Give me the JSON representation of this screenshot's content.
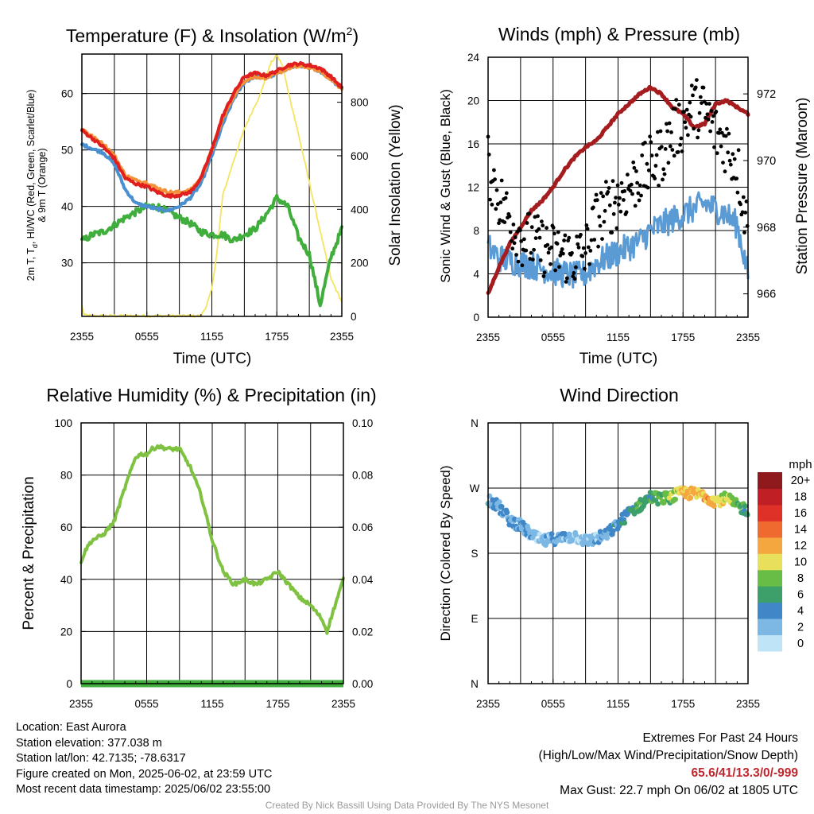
{
  "charts": {
    "temp": {
      "title": "Temperature (F) & Insolation (W/m",
      "title_sup": "2",
      "title_end": ")",
      "xlabel": "Time (UTC)",
      "ylabel_left_line1": "2m T, T",
      "ylabel_left_sub": "d",
      "ylabel_left_line1_end": ", HI/WC (Red, Green, Scarlet/Blue)",
      "ylabel_left_line2": "& 9m T (Orange)",
      "ylabel_right": "Solar Insolation (Yellow)"
    },
    "wind": {
      "title": "Winds (mph) & Pressure (mb)",
      "xlabel": "Time (UTC)",
      "ylabel_left": "Sonic Wind & Gust (Blue, Black)",
      "ylabel_right": "Station Pressure (Maroon)"
    },
    "rh": {
      "title": "Relative Humidity (%) & Precipitation (in)",
      "ylabel_left": "Percent & Precipitation"
    },
    "dir": {
      "title": "Wind Direction",
      "ylabel_left": "Direction (Colored By Speed)",
      "colorbar_title": "mph"
    }
  },
  "chart_data": [
    {
      "id": "temperature",
      "type": "line",
      "x_ticks": [
        "2355",
        "0555",
        "1155",
        "1755",
        "2355"
      ],
      "y_left_ticks": [
        "30",
        "40",
        "50",
        "60"
      ],
      "y_left_lim": [
        20.5,
        67
      ],
      "y_right_ticks": [
        "0",
        "200",
        "400",
        "600",
        "800"
      ],
      "y_right_lim": [
        0,
        980
      ],
      "series": [
        {
          "name": "Scarlet",
          "color": "#e0201f",
          "axis": "left",
          "t": [
            0,
            1,
            2,
            3,
            4,
            5,
            6,
            7,
            8,
            9,
            10,
            11,
            12,
            13,
            14,
            15,
            16,
            17,
            18,
            19,
            20,
            21,
            22,
            23,
            24
          ],
          "v": [
            53.5,
            52,
            50.5,
            48.5,
            45,
            44,
            43.5,
            42.5,
            41.8,
            42,
            42.5,
            45,
            50,
            56,
            60,
            63,
            63.6,
            63.2,
            64,
            65,
            65.3,
            65,
            64.5,
            63,
            61
          ]
        },
        {
          "name": "Orange",
          "color": "#f4923a",
          "axis": "left",
          "t": [
            0,
            1,
            2,
            3,
            4,
            5,
            6,
            7,
            8,
            9,
            10,
            11,
            12,
            13,
            14,
            15,
            16,
            17,
            18,
            19,
            20,
            21,
            22,
            23,
            24
          ],
          "v": [
            53.8,
            52.3,
            51,
            49,
            45.5,
            44.6,
            44.2,
            43.2,
            42.5,
            42.5,
            42.8,
            45,
            50,
            55.5,
            59.5,
            62.3,
            63,
            62.8,
            63.5,
            64.5,
            64.8,
            64.7,
            64,
            62.5,
            60.8
          ]
        },
        {
          "name": "Blue",
          "color": "#4a8fd0",
          "axis": "left",
          "t": [
            0,
            1,
            2,
            3,
            4,
            5,
            6,
            7,
            8,
            9,
            10,
            11,
            12,
            13,
            14,
            15,
            16,
            17,
            18,
            19,
            20,
            21,
            22,
            23,
            24
          ],
          "v": [
            51,
            50.2,
            49.5,
            47.5,
            43,
            40.5,
            40,
            39.5,
            39.3,
            40,
            41.5,
            44,
            49,
            54.5,
            59,
            62,
            63,
            62.8,
            63.5,
            64.5,
            65,
            64.8,
            64,
            62.6,
            60.8
          ]
        },
        {
          "name": "Green",
          "color": "#3fae3c",
          "axis": "left",
          "t": [
            0,
            1,
            2,
            3,
            4,
            5,
            6,
            7,
            8,
            9,
            10,
            11,
            12,
            13,
            14,
            15,
            16,
            17,
            18,
            19,
            20,
            21,
            22,
            23,
            24
          ],
          "v": [
            33.8,
            35,
            35.5,
            36.7,
            38,
            39,
            40,
            40,
            39,
            38,
            37,
            35.5,
            35,
            35,
            34,
            35,
            36,
            38.5,
            41.5,
            40,
            34.5,
            31.5,
            22.5,
            31,
            36
          ]
        },
        {
          "name": "Yellow",
          "color": "#f5e45d",
          "axis": "right",
          "t": [
            0,
            0.2,
            1,
            4,
            8,
            11,
            11.5,
            12,
            12.5,
            13,
            14,
            15,
            16,
            16.5,
            17,
            17.5,
            18,
            18.5,
            19,
            20,
            21,
            22,
            23,
            24
          ],
          "v": [
            40,
            5,
            2,
            2,
            2,
            2,
            40,
            100,
            250,
            450,
            580,
            700,
            790,
            830,
            900,
            950,
            975,
            940,
            850,
            680,
            500,
            320,
            140,
            55
          ]
        }
      ]
    },
    {
      "id": "winds",
      "type": "line",
      "x_ticks": [
        "2355",
        "0555",
        "1155",
        "1755",
        "2355"
      ],
      "y_left_ticks": [
        "0",
        "4",
        "8",
        "12",
        "16",
        "20",
        "24"
      ],
      "y_left_lim": [
        0,
        24
      ],
      "y_right_ticks": [
        "966",
        "968",
        "970",
        "972"
      ],
      "y_right_lim": [
        965.3,
        973.1
      ],
      "series": [
        {
          "name": "Maroon",
          "color": "#a51c1f",
          "axis": "right",
          "kind": "line",
          "t": [
            0,
            1,
            2,
            3,
            4,
            5,
            6,
            7,
            8,
            9,
            10,
            11,
            12,
            13,
            14,
            15,
            16,
            17,
            18,
            19,
            20,
            21,
            22,
            23,
            24
          ],
          "v": [
            966.0,
            966.8,
            967.5,
            968.0,
            968.5,
            968.8,
            969.2,
            969.7,
            970.1,
            970.4,
            970.6,
            971.0,
            971.4,
            971.7,
            972.0,
            972.2,
            972.0,
            971.6,
            971.4,
            971.0,
            971.1,
            971.7,
            971.8,
            971.6,
            971.4
          ]
        },
        {
          "name": "Blue",
          "color": "#5b9bd5",
          "axis": "left",
          "kind": "line",
          "t": [
            0,
            1,
            2,
            3,
            4,
            5,
            6,
            7,
            8,
            9,
            10,
            11,
            12,
            13,
            14,
            15,
            16,
            17,
            18,
            19,
            20,
            21,
            22,
            23,
            24
          ],
          "v": [
            6.5,
            5.5,
            5.2,
            5.0,
            4.8,
            4.5,
            4.2,
            4.0,
            3.8,
            4.0,
            5.0,
            5.5,
            6.0,
            6.5,
            7.0,
            8.0,
            8.5,
            9.0,
            9.5,
            10.0,
            10.5,
            10.0,
            9.5,
            8.5,
            4.0
          ]
        },
        {
          "name": "Black",
          "color": "#000000",
          "axis": "left",
          "kind": "scatter",
          "t": [
            0,
            1,
            2,
            3,
            4,
            5,
            6,
            7,
            8,
            9,
            10,
            11,
            12,
            13,
            14,
            15,
            16,
            17,
            18,
            19,
            20,
            21,
            22,
            23,
            24
          ],
          "v": [
            14,
            11,
            9,
            7.5,
            7,
            6.5,
            6,
            5.8,
            5.5,
            6,
            9,
            10,
            11,
            12,
            13,
            14,
            15,
            17,
            18,
            19.5,
            19,
            17,
            16,
            14,
            8
          ]
        }
      ]
    },
    {
      "id": "humidity",
      "type": "line",
      "x_ticks": [
        "2355",
        "0555",
        "1155",
        "1755",
        "2355"
      ],
      "y_left_ticks": [
        "0",
        "20",
        "40",
        "60",
        "80",
        "100"
      ],
      "y_left_lim": [
        0,
        100
      ],
      "y_right_ticks": [
        "0.00",
        "0.02",
        "0.04",
        "0.06",
        "0.08",
        "0.10"
      ],
      "y_right_lim": [
        0,
        0.1
      ],
      "series": [
        {
          "name": "RH",
          "color": "#7fc241",
          "axis": "left",
          "t": [
            0,
            0.5,
            1,
            2,
            3,
            4,
            5,
            5.5,
            6,
            6.5,
            7,
            8,
            9,
            10,
            11,
            12,
            13,
            14,
            15,
            16,
            17,
            18,
            19,
            20,
            21,
            22,
            22.5,
            23,
            24
          ],
          "v": [
            47,
            52,
            55,
            57,
            62,
            75,
            87,
            88,
            88,
            90,
            91,
            90,
            90,
            83,
            72,
            55,
            43,
            38,
            40,
            38,
            40,
            43,
            38,
            33,
            30,
            25,
            20,
            27,
            40
          ]
        },
        {
          "name": "Precipitation",
          "color": "#3fae3c",
          "axis": "right",
          "t": [
            0,
            24
          ],
          "v": [
            0,
            0
          ]
        }
      ]
    },
    {
      "id": "wind_direction",
      "type": "scatter",
      "x_ticks": [
        "2355",
        "0555",
        "1155",
        "1755",
        "2355"
      ],
      "y_ticks": [
        "N",
        "E",
        "S",
        "W",
        "N"
      ],
      "y_lim": [
        0,
        360
      ],
      "colorbar": {
        "labels": [
          "0",
          "2",
          "4",
          "6",
          "8",
          "10",
          "12",
          "14",
          "16",
          "18",
          "20+"
        ],
        "colors": [
          "#bfe3f7",
          "#7db8e5",
          "#3f87c7",
          "#3d9f6a",
          "#67bd45",
          "#e8e05a",
          "#f5a73f",
          "#ee6a2e",
          "#df3127",
          "#c01f26",
          "#8e1a1e"
        ]
      },
      "series": [
        {
          "name": "direction",
          "t": [
            0,
            1,
            2,
            3,
            4,
            5,
            6,
            7,
            8,
            9,
            10,
            11,
            12,
            13,
            14,
            15,
            16,
            17,
            18,
            19,
            20,
            21,
            22,
            23,
            24
          ],
          "v": [
            256,
            244,
            226,
            218,
            205,
            196,
            200,
            201,
            204,
            197,
            200,
            206,
            220,
            236,
            246,
            258,
            255,
            258,
            264,
            262,
            260,
            252,
            256,
            245,
            240
          ],
          "speed": [
            5,
            4,
            4,
            4,
            3,
            3,
            3,
            3,
            2,
            2,
            3,
            4,
            5,
            6,
            7,
            7,
            8,
            9,
            12,
            12,
            13,
            12,
            10,
            9,
            6
          ]
        }
      ]
    }
  ],
  "footer": {
    "location": "Location: East Aurora",
    "elevation": "Station elevation: 377.038 m",
    "latlon": "Station lat/lon: 42.7135; -78.6317",
    "created": "Figure created on Mon, 2025-06-02, at 23:59 UTC",
    "recent": "Most recent data timestamp: 2025/06/02 23:55:00",
    "extremes_title": "Extremes For Past 24 Hours",
    "extremes_legend": "(High/Low/Max Wind/Precipitation/Snow Depth)",
    "extremes_values": "65.6/41/13.3/0/-999",
    "max_gust": "Max Gust: 22.7 mph On 06/02 at 1805 UTC",
    "credit": "Created By Nick Bassill Using Data Provided By The NYS Mesonet"
  }
}
